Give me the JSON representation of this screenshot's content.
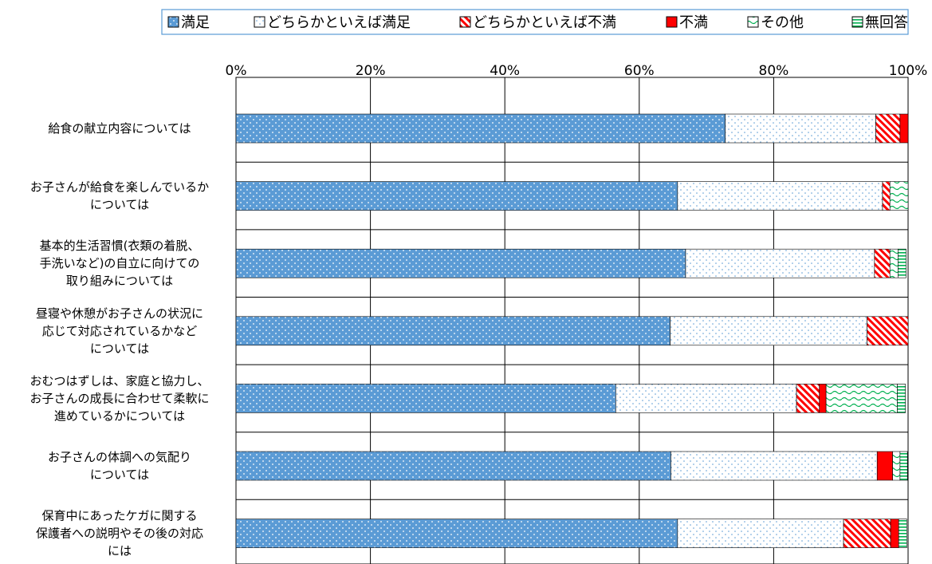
{
  "chart_data": {
    "type": "bar",
    "orientation": "horizontal",
    "stacked": true,
    "title": "",
    "xlabel": "",
    "ylabel": "",
    "xlim": [
      0,
      100
    ],
    "x_ticks": [
      "0%",
      "20%",
      "40%",
      "60%",
      "80%",
      "100%"
    ],
    "grid": "vertical",
    "legend_position": "top",
    "categories": [
      [
        "給食の献立内容については"
      ],
      [
        "お子さんが給食を楽しんでいるか",
        "については"
      ],
      [
        "基本的生活習慣(衣類の着脱、",
        "手洗いなど)の自立に向けての",
        "取り組みについては"
      ],
      [
        "昼寝や休憩がお子さんの状況に",
        "応じて対応されているかなど",
        "については"
      ],
      [
        "おむつはずしは、家庭と協力し、",
        "お子さんの成長に合わせて柔軟に",
        "進めているかについては"
      ],
      [
        "お子さんの体調への気配り",
        "については"
      ],
      [
        "保育中にあったケガに関する",
        "保護者への説明やその後の対応",
        "には"
      ]
    ],
    "series": [
      {
        "name": "満足",
        "color": "#5b9bd5",
        "pattern": "dots-white-on-blue",
        "values": [
          72.8,
          65.7,
          66.9,
          64.6,
          56.5,
          64.7,
          65.7
        ]
      },
      {
        "name": "どちらかといえば満足",
        "color": "#5b9bd5",
        "pattern": "dots-blue-on-white",
        "values": [
          22.4,
          30.5,
          28.1,
          29.3,
          26.9,
          30.7,
          24.7
        ]
      },
      {
        "name": "どちらかといえば不満",
        "color": "#ff0000",
        "pattern": "diagonal-red",
        "values": [
          3.6,
          1.1,
          2.3,
          6.1,
          3.4,
          0.0,
          7.0
        ]
      },
      {
        "name": "不満",
        "color": "#ff0000",
        "pattern": "solid-red",
        "values": [
          1.2,
          0.0,
          0.0,
          0.0,
          1.0,
          2.3,
          1.2
        ]
      },
      {
        "name": "その他",
        "color": "#00b050",
        "pattern": "wave-green",
        "values": [
          0.0,
          2.7,
          1.2,
          0.0,
          10.6,
          1.1,
          0.0
        ]
      },
      {
        "name": "無回答",
        "color": "#00b050",
        "pattern": "hlines-green",
        "values": [
          0.0,
          0.0,
          1.2,
          0.0,
          1.2,
          1.1,
          1.2
        ]
      }
    ]
  }
}
